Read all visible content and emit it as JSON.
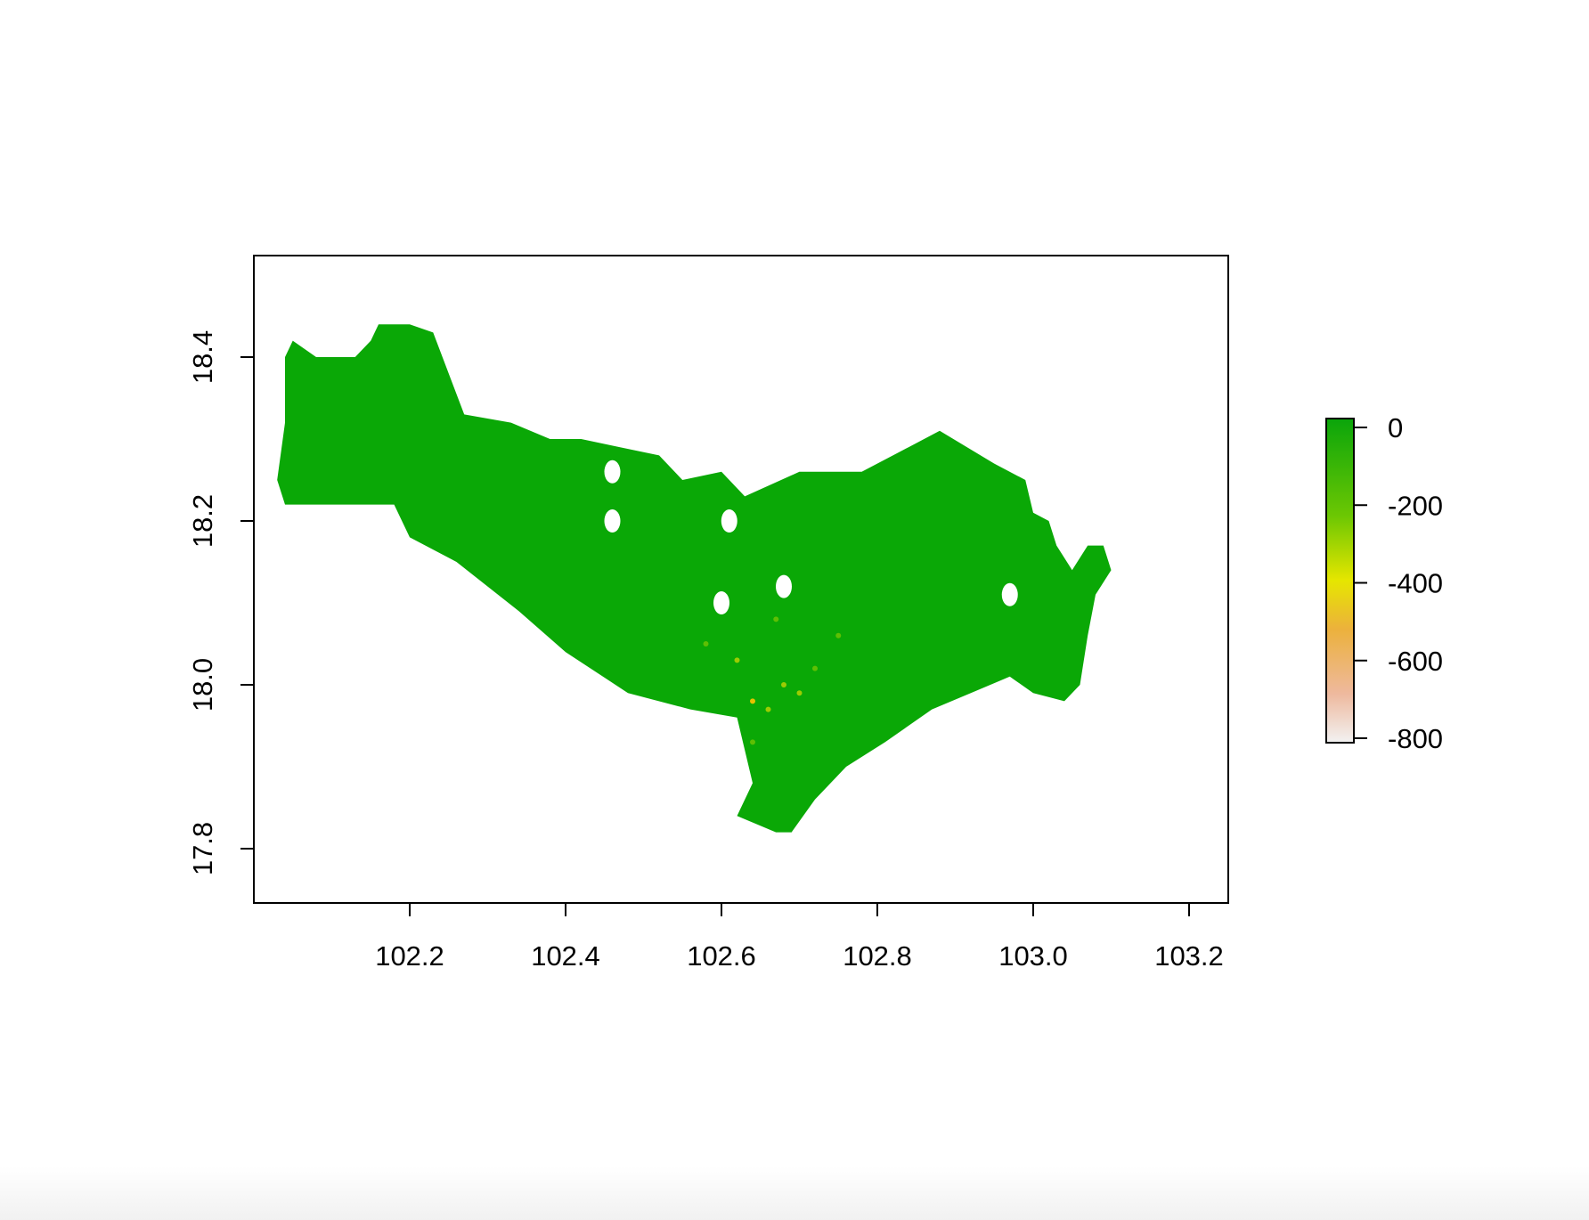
{
  "chart_data": {
    "type": "heatmap",
    "title": "",
    "xlabel": "",
    "ylabel": "",
    "x_ticks": [
      102.2,
      102.4,
      102.6,
      102.8,
      103.0,
      103.2
    ],
    "x_tick_labels": [
      "102.2",
      "102.4",
      "102.6",
      "102.8",
      "103.0",
      "103.2"
    ],
    "y_ticks": [
      17.8,
      18.0,
      18.2,
      18.4
    ],
    "y_tick_labels": [
      "17.8",
      "18.0",
      "18.2",
      "18.4"
    ],
    "xlim": [
      102.0,
      103.25
    ],
    "ylim": [
      17.73,
      18.52
    ],
    "colorbar": {
      "ticks": [
        0,
        -200,
        -400,
        -600,
        -800
      ],
      "tick_labels": [
        "0",
        "-200",
        "-400",
        "-600",
        "-800"
      ],
      "range": [
        -820,
        20
      ],
      "colors": [
        "#0aa50a",
        "#6cc703",
        "#e6e600",
        "#ecb13c",
        "#eeb99e",
        "#f2f2f2"
      ],
      "position": "right"
    },
    "region_fill": "#0aa806",
    "region_outline_lonlat": [
      [
        102.04,
        18.4
      ],
      [
        102.05,
        18.42
      ],
      [
        102.08,
        18.4
      ],
      [
        102.13,
        18.4
      ],
      [
        102.15,
        18.42
      ],
      [
        102.16,
        18.44
      ],
      [
        102.2,
        18.44
      ],
      [
        102.23,
        18.43
      ],
      [
        102.27,
        18.33
      ],
      [
        102.33,
        18.32
      ],
      [
        102.38,
        18.3
      ],
      [
        102.42,
        18.3
      ],
      [
        102.47,
        18.29
      ],
      [
        102.52,
        18.28
      ],
      [
        102.55,
        18.25
      ],
      [
        102.6,
        18.26
      ],
      [
        102.63,
        18.23
      ],
      [
        102.7,
        18.26
      ],
      [
        102.78,
        18.26
      ],
      [
        102.84,
        18.29
      ],
      [
        102.88,
        18.31
      ],
      [
        102.95,
        18.27
      ],
      [
        102.99,
        18.25
      ],
      [
        103.0,
        18.21
      ],
      [
        103.02,
        18.2
      ],
      [
        103.03,
        18.17
      ],
      [
        103.05,
        18.14
      ],
      [
        103.07,
        18.17
      ],
      [
        103.09,
        18.17
      ],
      [
        103.1,
        18.14
      ],
      [
        103.08,
        18.11
      ],
      [
        103.07,
        18.06
      ],
      [
        103.06,
        18.0
      ],
      [
        103.04,
        17.98
      ],
      [
        103.0,
        17.99
      ],
      [
        102.97,
        18.01
      ],
      [
        102.92,
        17.99
      ],
      [
        102.87,
        17.97
      ],
      [
        102.81,
        17.93
      ],
      [
        102.76,
        17.9
      ],
      [
        102.72,
        17.86
      ],
      [
        102.69,
        17.82
      ],
      [
        102.67,
        17.82
      ],
      [
        102.62,
        17.84
      ],
      [
        102.64,
        17.88
      ],
      [
        102.62,
        17.96
      ],
      [
        102.56,
        17.97
      ],
      [
        102.48,
        17.99
      ],
      [
        102.4,
        18.04
      ],
      [
        102.34,
        18.09
      ],
      [
        102.26,
        18.15
      ],
      [
        102.2,
        18.18
      ],
      [
        102.18,
        18.22
      ],
      [
        102.12,
        18.22
      ],
      [
        102.08,
        18.22
      ],
      [
        102.04,
        18.22
      ],
      [
        102.03,
        18.25
      ],
      [
        102.04,
        18.32
      ],
      [
        102.04,
        18.4
      ]
    ],
    "gap_patches": [
      {
        "lon": 102.46,
        "lat": 18.2
      },
      {
        "lon": 102.46,
        "lat": 18.26
      },
      {
        "lon": 102.6,
        "lat": 18.1
      },
      {
        "lon": 102.68,
        "lat": 18.12
      },
      {
        "lon": 102.61,
        "lat": 18.2
      },
      {
        "lon": 102.97,
        "lat": 18.11
      }
    ],
    "low_value_spots": [
      {
        "lon": 102.62,
        "lat": 18.03,
        "value": -280
      },
      {
        "lon": 102.66,
        "lat": 17.97,
        "value": -250
      },
      {
        "lon": 102.64,
        "lat": 17.93,
        "value": -220
      },
      {
        "lon": 102.68,
        "lat": 18.0,
        "value": -300
      },
      {
        "lon": 102.7,
        "lat": 17.99,
        "value": -260
      },
      {
        "lon": 102.58,
        "lat": 18.05,
        "value": -200
      },
      {
        "lon": 102.72,
        "lat": 18.02,
        "value": -230
      },
      {
        "lon": 102.67,
        "lat": 18.08,
        "value": -190
      },
      {
        "lon": 102.75,
        "lat": 18.06,
        "value": -210
      },
      {
        "lon": 102.64,
        "lat": 17.98,
        "value": -320
      }
    ]
  }
}
